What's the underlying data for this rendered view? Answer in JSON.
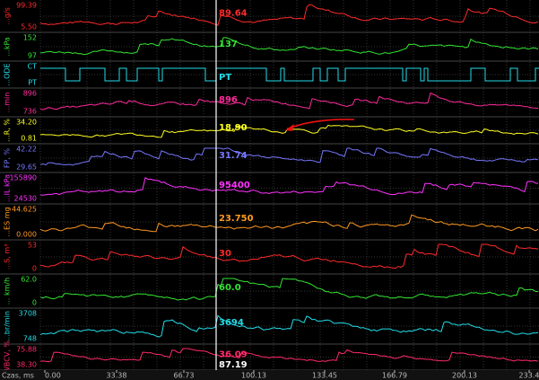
{
  "channels": [
    {
      "name": "...g/s",
      "max": "99.39",
      "min": "5.50",
      "value": "89.64",
      "color": "#ff2a2a"
    },
    {
      "name": "...kPa",
      "max": "152",
      "min": "97",
      "value": "137",
      "color": "#33e633"
    },
    {
      "name": "...ODE",
      "max": "CT",
      "min": "PT",
      "value": "PT",
      "color": "#22dde8"
    },
    {
      "name": "...min",
      "max": "896",
      "min": "736",
      "value": "896",
      "color": "#ff2a9a"
    },
    {
      "name": "...R, %",
      "max": "34.20",
      "min": "0.81",
      "value": "18.90",
      "color": "#ffff22"
    },
    {
      "name": "FP, %",
      "max": "42.22",
      "min": "29.65",
      "value": "31.74",
      "color": "#7777ff"
    },
    {
      "name": "...IL kPa",
      "max": "155890",
      "min": "24530",
      "value": "95400",
      "color": "#ff33ff"
    },
    {
      "name": "...ES mg",
      "max": "44.625",
      "min": "0.000",
      "value": "23.750",
      "color": "#ff9922"
    },
    {
      "name": "...S, m³",
      "max": "53",
      "min": "0",
      "value": "30",
      "color": "#ff2a2a"
    },
    {
      "name": "... km/h",
      "max": "62.0",
      "min": "0",
      "value": "60.0",
      "color": "#33e633"
    },
    {
      "name": "...br/min",
      "max": "3708",
      "min": "748",
      "value": "3694",
      "color": "#22dde8"
    },
    {
      "name": "WBCV, %",
      "max": "75.88",
      "min": "38.30",
      "value": "36.09",
      "color": "#ff2a6a"
    }
  ],
  "extra_value": "87.19",
  "axis": {
    "label": "Czas, ms",
    "ticks": [
      "0.00",
      "33.38",
      "66.73",
      "100.13",
      "133.45",
      "166.79",
      "200.13",
      "233.4"
    ]
  }
}
